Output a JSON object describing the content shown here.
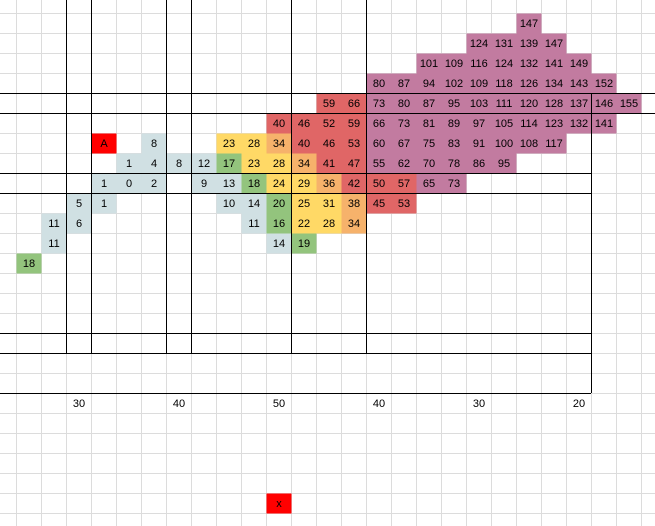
{
  "grid": {
    "rows": [
      [
        null,
        null,
        null,
        null,
        null,
        null,
        null,
        null,
        null,
        null,
        null,
        null,
        null,
        null,
        null,
        null,
        null,
        null,
        null,
        null,
        {
          "t": 147,
          "c": "#c27ba0"
        }
      ],
      [
        null,
        null,
        null,
        null,
        null,
        null,
        null,
        null,
        null,
        null,
        null,
        null,
        null,
        null,
        null,
        null,
        null,
        null,
        {
          "t": 124,
          "c": "#c27ba0"
        },
        {
          "t": 131,
          "c": "#c27ba0"
        },
        {
          "t": 139,
          "c": "#c27ba0"
        },
        {
          "t": 147,
          "c": "#c27ba0"
        }
      ],
      [
        null,
        null,
        null,
        null,
        null,
        null,
        null,
        null,
        null,
        null,
        null,
        null,
        null,
        null,
        null,
        null,
        {
          "t": 101,
          "c": "#c27ba0"
        },
        {
          "t": 109,
          "c": "#c27ba0"
        },
        {
          "t": 116,
          "c": "#c27ba0"
        },
        {
          "t": 124,
          "c": "#c27ba0"
        },
        {
          "t": 132,
          "c": "#c27ba0"
        },
        {
          "t": 141,
          "c": "#c27ba0"
        },
        {
          "t": 149,
          "c": "#c27ba0"
        }
      ],
      [
        null,
        null,
        null,
        null,
        null,
        null,
        null,
        null,
        null,
        null,
        null,
        null,
        null,
        null,
        {
          "t": 80,
          "c": "#c27ba0"
        },
        {
          "t": 87,
          "c": "#c27ba0"
        },
        {
          "t": 94,
          "c": "#c27ba0"
        },
        {
          "t": 102,
          "c": "#c27ba0"
        },
        {
          "t": 109,
          "c": "#c27ba0"
        },
        {
          "t": 118,
          "c": "#c27ba0"
        },
        {
          "t": 126,
          "c": "#c27ba0"
        },
        {
          "t": 134,
          "c": "#c27ba0"
        },
        {
          "t": 143,
          "c": "#c27ba0"
        },
        {
          "t": 152,
          "c": "#c27ba0"
        }
      ],
      [
        null,
        null,
        null,
        null,
        null,
        null,
        null,
        null,
        null,
        null,
        null,
        null,
        {
          "t": 59,
          "c": "#e06666"
        },
        {
          "t": 66,
          "c": "#e06666"
        },
        {
          "t": 73,
          "c": "#c27ba0"
        },
        {
          "t": 80,
          "c": "#c27ba0"
        },
        {
          "t": 87,
          "c": "#c27ba0"
        },
        {
          "t": 95,
          "c": "#c27ba0"
        },
        {
          "t": 103,
          "c": "#c27ba0"
        },
        {
          "t": 111,
          "c": "#c27ba0"
        },
        {
          "t": 120,
          "c": "#c27ba0"
        },
        {
          "t": 128,
          "c": "#c27ba0"
        },
        {
          "t": 137,
          "c": "#c27ba0"
        },
        {
          "t": 146,
          "c": "#c27ba0"
        },
        {
          "t": 155,
          "c": "#c27ba0"
        }
      ],
      [
        null,
        null,
        null,
        null,
        null,
        null,
        null,
        null,
        null,
        null,
        {
          "t": 40,
          "c": "#e06666"
        },
        {
          "t": 46,
          "c": "#e06666"
        },
        {
          "t": 52,
          "c": "#e06666"
        },
        {
          "t": 59,
          "c": "#e06666"
        },
        {
          "t": 66,
          "c": "#c27ba0"
        },
        {
          "t": 73,
          "c": "#c27ba0"
        },
        {
          "t": 81,
          "c": "#c27ba0"
        },
        {
          "t": 89,
          "c": "#c27ba0"
        },
        {
          "t": 97,
          "c": "#c27ba0"
        },
        {
          "t": 105,
          "c": "#c27ba0"
        },
        {
          "t": 114,
          "c": "#c27ba0"
        },
        {
          "t": 123,
          "c": "#c27ba0"
        },
        {
          "t": 132,
          "c": "#c27ba0"
        },
        {
          "t": 141,
          "c": "#c27ba0"
        }
      ],
      [
        null,
        null,
        null,
        {
          "t": "A",
          "c": "#ff0000"
        },
        null,
        {
          "t": 8,
          "c": "#d0e0e3"
        },
        null,
        null,
        {
          "t": 23,
          "c": "#ffd966"
        },
        {
          "t": 28,
          "c": "#ffd966"
        },
        {
          "t": 34,
          "c": "#f6b26b"
        },
        {
          "t": 40,
          "c": "#e06666"
        },
        {
          "t": 46,
          "c": "#e06666"
        },
        {
          "t": 53,
          "c": "#e06666"
        },
        {
          "t": 60,
          "c": "#c27ba0"
        },
        {
          "t": 67,
          "c": "#c27ba0"
        },
        {
          "t": 75,
          "c": "#c27ba0"
        },
        {
          "t": 83,
          "c": "#c27ba0"
        },
        {
          "t": 91,
          "c": "#c27ba0"
        },
        {
          "t": 100,
          "c": "#c27ba0"
        },
        {
          "t": 108,
          "c": "#c27ba0"
        },
        {
          "t": 117,
          "c": "#c27ba0"
        }
      ],
      [
        null,
        null,
        null,
        null,
        {
          "t": 1,
          "c": "#d0e0e3"
        },
        {
          "t": 4,
          "c": "#d0e0e3"
        },
        {
          "t": 8,
          "c": "#d0e0e3"
        },
        {
          "t": 12,
          "c": "#d0e0e3"
        },
        {
          "t": 17,
          "c": "#93c47d"
        },
        {
          "t": 23,
          "c": "#ffd966"
        },
        {
          "t": 28,
          "c": "#ffd966"
        },
        {
          "t": 34,
          "c": "#f6b26b"
        },
        {
          "t": 41,
          "c": "#e06666"
        },
        {
          "t": 47,
          "c": "#e06666"
        },
        {
          "t": 55,
          "c": "#c27ba0"
        },
        {
          "t": 62,
          "c": "#c27ba0"
        },
        {
          "t": 70,
          "c": "#c27ba0"
        },
        {
          "t": 78,
          "c": "#c27ba0"
        },
        {
          "t": 86,
          "c": "#c27ba0"
        },
        {
          "t": 95,
          "c": "#c27ba0"
        }
      ],
      [
        null,
        null,
        null,
        {
          "t": 1,
          "c": "#d0e0e3"
        },
        {
          "t": 0,
          "c": "#d0e0e3"
        },
        {
          "t": 2,
          "c": "#d0e0e3"
        },
        null,
        {
          "t": 9,
          "c": "#d0e0e3"
        },
        {
          "t": 13,
          "c": "#d0e0e3"
        },
        {
          "t": 18,
          "c": "#93c47d"
        },
        {
          "t": 24,
          "c": "#ffd966"
        },
        {
          "t": 29,
          "c": "#ffd966"
        },
        {
          "t": 36,
          "c": "#f6b26b"
        },
        {
          "t": 42,
          "c": "#e06666"
        },
        {
          "t": 50,
          "c": "#e06666"
        },
        {
          "t": 57,
          "c": "#e06666"
        },
        {
          "t": 65,
          "c": "#c27ba0"
        },
        {
          "t": 73,
          "c": "#c27ba0"
        }
      ],
      [
        null,
        null,
        {
          "t": 5,
          "c": "#d0e0e3"
        },
        {
          "t": 1,
          "c": "#d0e0e3"
        },
        null,
        null,
        null,
        null,
        {
          "t": 10,
          "c": "#d0e0e3"
        },
        {
          "t": 14,
          "c": "#d0e0e3"
        },
        {
          "t": 20,
          "c": "#93c47d"
        },
        {
          "t": 25,
          "c": "#ffd966"
        },
        {
          "t": 31,
          "c": "#ffd966"
        },
        {
          "t": 38,
          "c": "#f6b26b"
        },
        {
          "t": 45,
          "c": "#e06666"
        },
        {
          "t": 53,
          "c": "#e06666"
        }
      ],
      [
        null,
        {
          "t": 11,
          "c": "#d0e0e3"
        },
        {
          "t": 6,
          "c": "#d0e0e3"
        },
        null,
        null,
        null,
        null,
        null,
        null,
        {
          "t": 11,
          "c": "#d0e0e3"
        },
        {
          "t": 16,
          "c": "#93c47d"
        },
        {
          "t": 22,
          "c": "#ffd966"
        },
        {
          "t": 28,
          "c": "#ffd966"
        },
        {
          "t": 34,
          "c": "#f6b26b"
        }
      ],
      [
        null,
        {
          "t": 11,
          "c": "#d0e0e3"
        },
        null,
        null,
        null,
        null,
        null,
        null,
        null,
        null,
        {
          "t": 14,
          "c": "#d0e0e3"
        },
        {
          "t": 19,
          "c": "#93c47d"
        }
      ],
      [
        {
          "t": 18,
          "c": "#93c47d"
        }
      ],
      [],
      [],
      [],
      [],
      [],
      [],
      [
        null,
        null,
        {
          "t": 30
        },
        null,
        null,
        null,
        {
          "t": 40
        },
        null,
        null,
        null,
        {
          "t": 50
        },
        null,
        null,
        null,
        {
          "t": 40
        },
        null,
        null,
        null,
        {
          "t": 30
        },
        null,
        null,
        null,
        {
          "t": 20
        }
      ],
      [],
      [],
      [],
      [],
      [
        null,
        null,
        null,
        null,
        null,
        null,
        null,
        null,
        null,
        null,
        {
          "t": "x",
          "c": "#ff0000"
        }
      ]
    ]
  }
}
